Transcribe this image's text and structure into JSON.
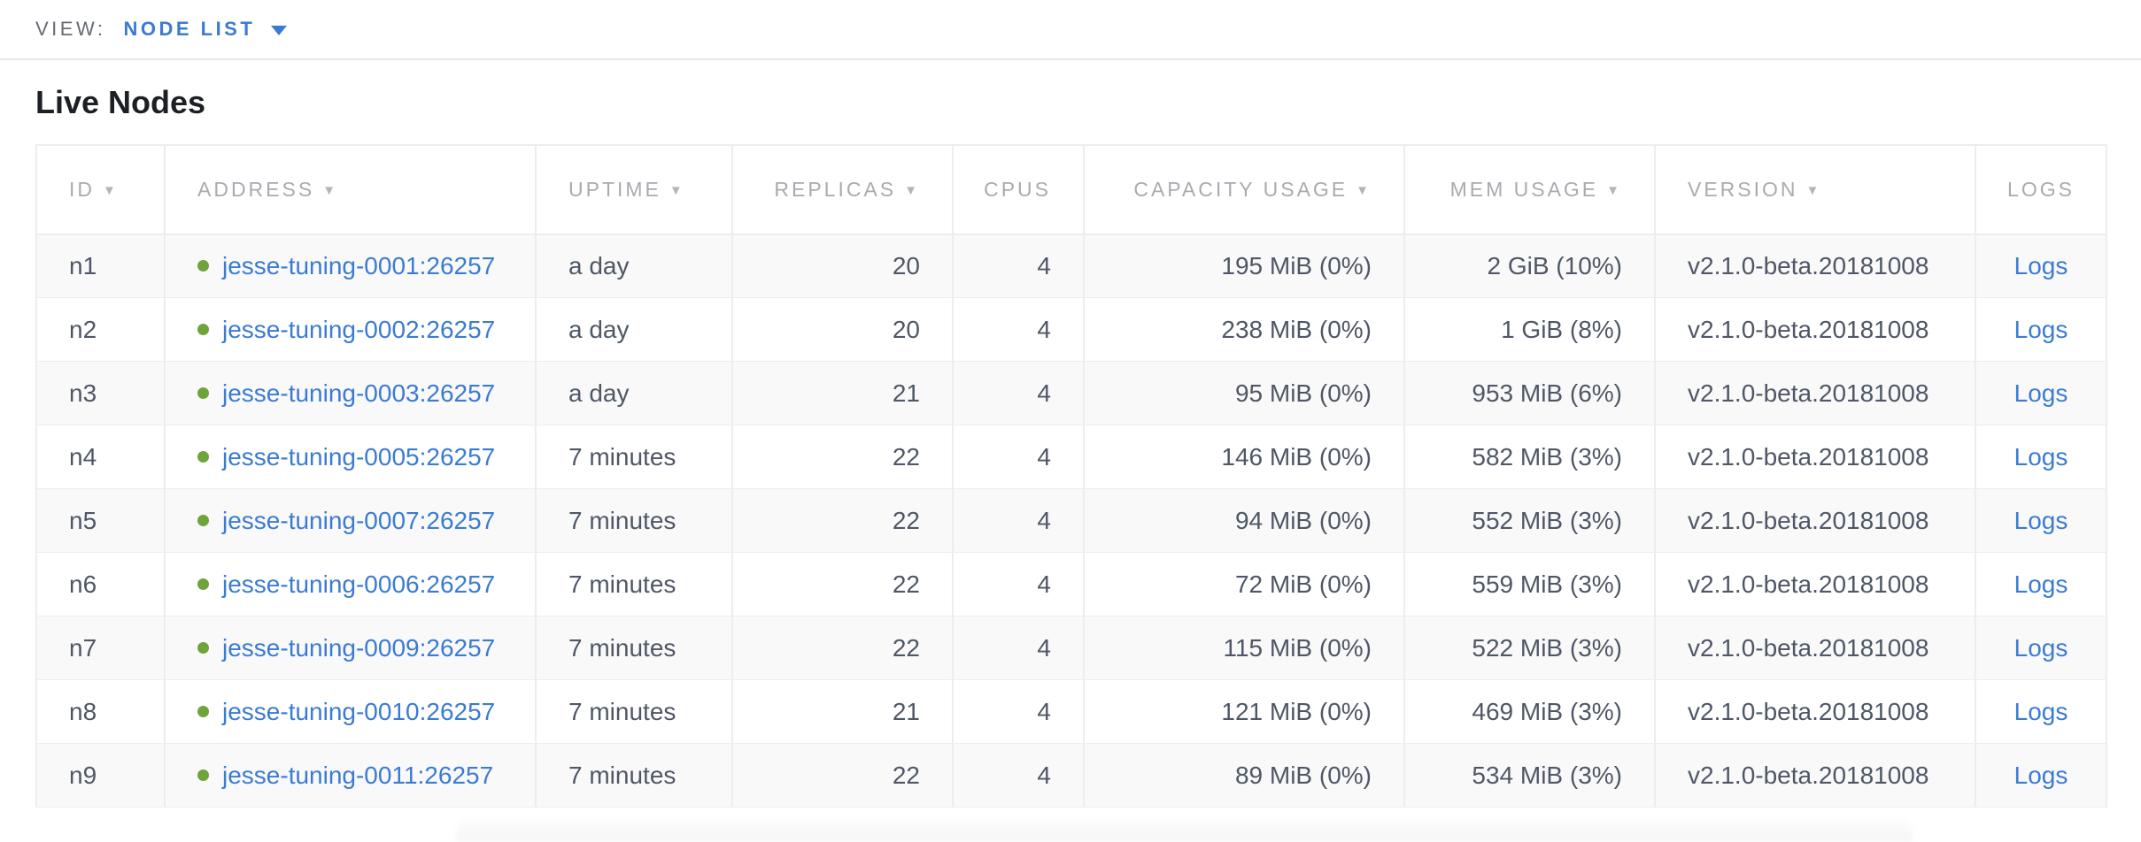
{
  "view_bar": {
    "label": "VIEW:",
    "selected": "NODE LIST"
  },
  "page": {
    "title": "Live Nodes"
  },
  "icons": {
    "sort_desc": "▼",
    "dropdown_caret": "caret-down",
    "live_status": "green-dot"
  },
  "colors": {
    "accent_blue": "#3b7bd3",
    "live_green": "#6fa43a",
    "header_gray": "#a8abb0",
    "cell_text": "#4f5767",
    "row_alt_bg": "#f9f9f9",
    "border": "#ededed"
  },
  "table": {
    "columns": [
      {
        "label": "ID",
        "sortable": true
      },
      {
        "label": "ADDRESS",
        "sortable": true
      },
      {
        "label": "UPTIME",
        "sortable": true
      },
      {
        "label": "REPLICAS",
        "sortable": true
      },
      {
        "label": "CPUS",
        "sortable": false
      },
      {
        "label": "CAPACITY USAGE",
        "sortable": true
      },
      {
        "label": "MEM USAGE",
        "sortable": true
      },
      {
        "label": "VERSION",
        "sortable": true
      },
      {
        "label": "LOGS",
        "sortable": false
      }
    ],
    "rows": [
      {
        "id": "n1",
        "address": "jesse-tuning-0001:26257",
        "status": "live",
        "uptime": "a day",
        "replicas": "20",
        "cpus": "4",
        "capacity": "195 MiB (0%)",
        "mem": "2 GiB (10%)",
        "version": "v2.1.0-beta.20181008",
        "logs": "Logs"
      },
      {
        "id": "n2",
        "address": "jesse-tuning-0002:26257",
        "status": "live",
        "uptime": "a day",
        "replicas": "20",
        "cpus": "4",
        "capacity": "238 MiB (0%)",
        "mem": "1 GiB (8%)",
        "version": "v2.1.0-beta.20181008",
        "logs": "Logs"
      },
      {
        "id": "n3",
        "address": "jesse-tuning-0003:26257",
        "status": "live",
        "uptime": "a day",
        "replicas": "21",
        "cpus": "4",
        "capacity": "95 MiB (0%)",
        "mem": "953 MiB (6%)",
        "version": "v2.1.0-beta.20181008",
        "logs": "Logs"
      },
      {
        "id": "n4",
        "address": "jesse-tuning-0005:26257",
        "status": "live",
        "uptime": "7 minutes",
        "replicas": "22",
        "cpus": "4",
        "capacity": "146 MiB (0%)",
        "mem": "582 MiB (3%)",
        "version": "v2.1.0-beta.20181008",
        "logs": "Logs"
      },
      {
        "id": "n5",
        "address": "jesse-tuning-0007:26257",
        "status": "live",
        "uptime": "7 minutes",
        "replicas": "22",
        "cpus": "4",
        "capacity": "94 MiB (0%)",
        "mem": "552 MiB (3%)",
        "version": "v2.1.0-beta.20181008",
        "logs": "Logs"
      },
      {
        "id": "n6",
        "address": "jesse-tuning-0006:26257",
        "status": "live",
        "uptime": "7 minutes",
        "replicas": "22",
        "cpus": "4",
        "capacity": "72 MiB (0%)",
        "mem": "559 MiB (3%)",
        "version": "v2.1.0-beta.20181008",
        "logs": "Logs"
      },
      {
        "id": "n7",
        "address": "jesse-tuning-0009:26257",
        "status": "live",
        "uptime": "7 minutes",
        "replicas": "22",
        "cpus": "4",
        "capacity": "115 MiB (0%)",
        "mem": "522 MiB (3%)",
        "version": "v2.1.0-beta.20181008",
        "logs": "Logs"
      },
      {
        "id": "n8",
        "address": "jesse-tuning-0010:26257",
        "status": "live",
        "uptime": "7 minutes",
        "replicas": "21",
        "cpus": "4",
        "capacity": "121 MiB (0%)",
        "mem": "469 MiB (3%)",
        "version": "v2.1.0-beta.20181008",
        "logs": "Logs"
      },
      {
        "id": "n9",
        "address": "jesse-tuning-0011:26257",
        "status": "live",
        "uptime": "7 minutes",
        "replicas": "22",
        "cpus": "4",
        "capacity": "89 MiB (0%)",
        "mem": "534 MiB (3%)",
        "version": "v2.1.0-beta.20181008",
        "logs": "Logs"
      }
    ]
  }
}
